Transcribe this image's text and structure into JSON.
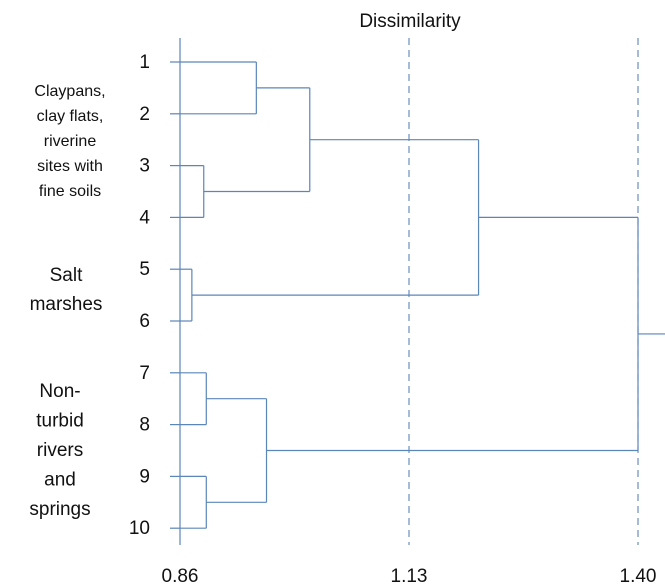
{
  "chart_data": {
    "type": "dendrogram",
    "title": "Dissimilarity",
    "leaves": [
      "1",
      "2",
      "3",
      "4",
      "5",
      "6",
      "7",
      "8",
      "9",
      "10"
    ],
    "xlim": [
      0.86,
      1.4
    ],
    "ticks": [
      0.86,
      1.13,
      1.4
    ],
    "tick_labels": [
      "0.86",
      "1.13",
      "1.40"
    ],
    "reference_lines": [
      1.13,
      1.4
    ],
    "merges": [
      {
        "left": "3",
        "right": "4",
        "height": 0.888
      },
      {
        "left": "5",
        "right": "6",
        "height": 0.874
      },
      {
        "left": "7",
        "right": "8",
        "height": 0.891
      },
      {
        "left": "9",
        "right": "10",
        "height": 0.891
      },
      {
        "left": "1",
        "right": "2",
        "height": 0.95
      },
      {
        "left": "1-2",
        "right": "3-4",
        "height": 1.013
      },
      {
        "left": "7-8",
        "right": "9-10",
        "height": 0.962
      },
      {
        "left": "1-4",
        "right": "5-6",
        "height": 1.212
      },
      {
        "left": "1-6",
        "right": "7-10",
        "height": 1.4
      }
    ],
    "line_color": "#5b86b8"
  },
  "groups": [
    {
      "lines": [
        "Claypans,",
        "clay flats,",
        "riverine",
        "sites with",
        "fine soils"
      ]
    },
    {
      "lines": [
        "Salt",
        "marshes"
      ]
    },
    {
      "lines": [
        "Non-",
        "turbid",
        "rivers",
        "and",
        "springs"
      ]
    }
  ]
}
